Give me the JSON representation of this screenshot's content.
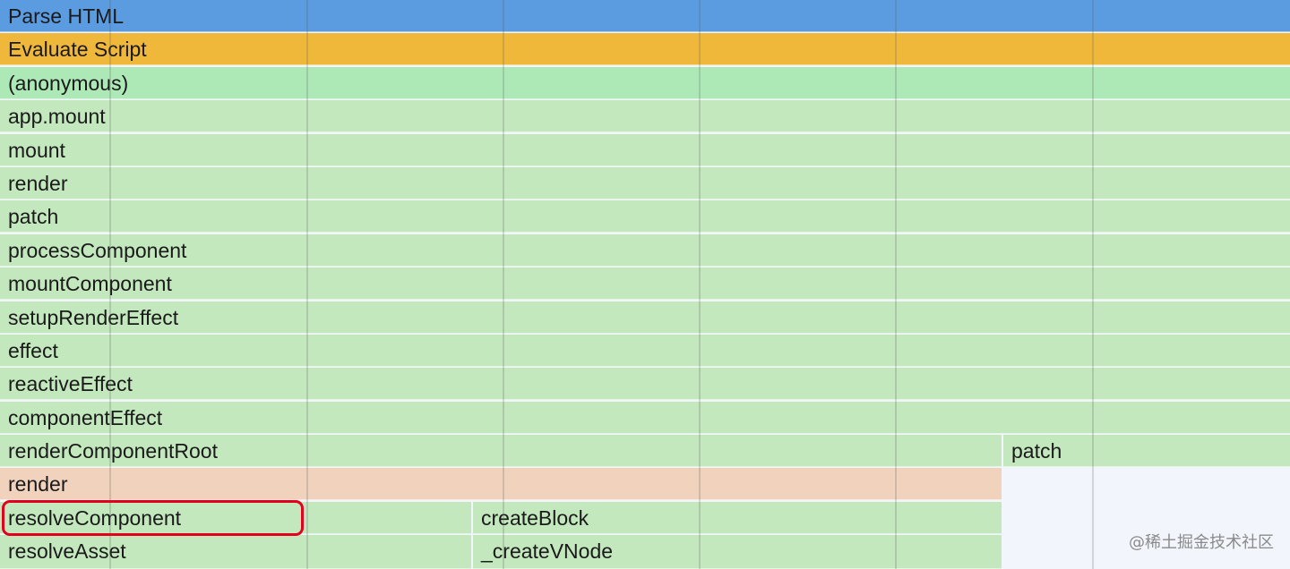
{
  "colors": {
    "parse_html": "#5b9be0",
    "evaluate_script": "#f0b83a",
    "anonymous": "#ade9b6",
    "frame_green": "#c3e8bd",
    "render_peach": "#f1d2bd",
    "empty_area": "#f2f6fc",
    "highlight_border": "#e3001b"
  },
  "frames": [
    {
      "name": "Parse HTML",
      "color": "parse_html"
    },
    {
      "name": "Evaluate Script",
      "color": "evaluate_script"
    },
    {
      "name": "(anonymous)",
      "color": "anonymous"
    },
    {
      "name": "app.mount",
      "color": "frame_green"
    },
    {
      "name": "mount",
      "color": "frame_green"
    },
    {
      "name": "render",
      "color": "frame_green"
    },
    {
      "name": "patch",
      "color": "frame_green"
    },
    {
      "name": "processComponent",
      "color": "frame_green"
    },
    {
      "name": "mountComponent",
      "color": "frame_green"
    },
    {
      "name": "setupRenderEffect",
      "color": "frame_green"
    },
    {
      "name": "effect",
      "color": "frame_green"
    },
    {
      "name": "reactiveEffect",
      "color": "frame_green"
    },
    {
      "name": "componentEffect",
      "color": "frame_green"
    },
    {
      "name": "renderComponentRoot",
      "color": "frame_green"
    },
    {
      "name": "patch",
      "color": "frame_green"
    },
    {
      "name": "render",
      "color": "render_peach"
    },
    {
      "name": "resolveComponent",
      "color": "frame_green",
      "highlighted": true
    },
    {
      "name": "createBlock",
      "color": "frame_green"
    },
    {
      "name": "resolveAsset",
      "color": "frame_green"
    },
    {
      "name": "_createVNode",
      "color": "frame_green"
    }
  ],
  "watermark": "@稀土掘金技术社区"
}
